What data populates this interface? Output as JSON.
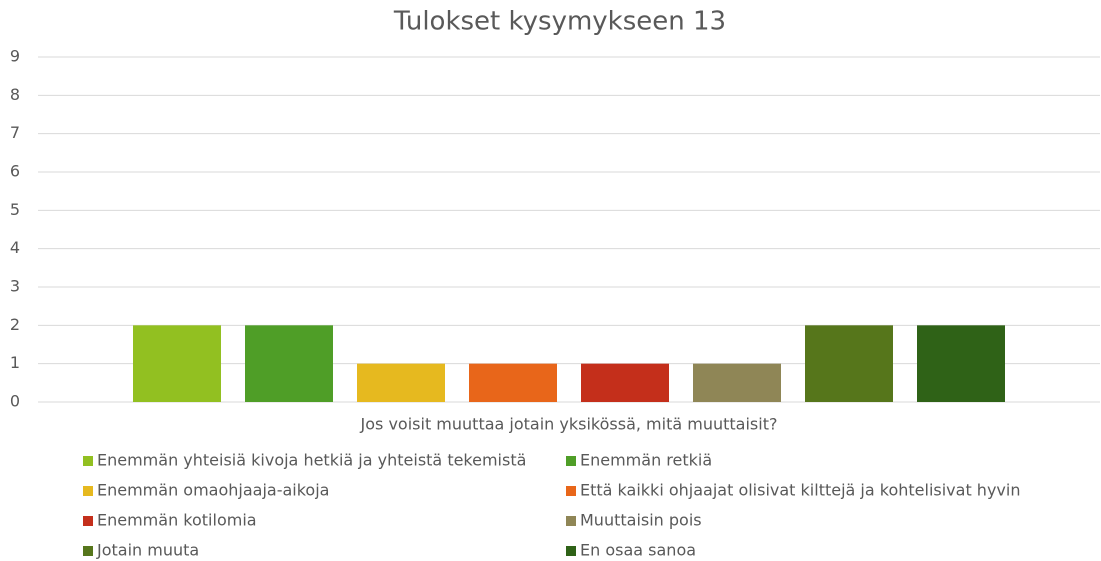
{
  "chart_data": {
    "type": "bar",
    "title": "Tulokset kysymykseen 13",
    "categories": [
      "Jos voisit muuttaa jotain yksikössä, mitä muuttaisit?"
    ],
    "series": [
      {
        "name": "Enemmän yhteisiä kivoja hetkiä ja yhteistä tekemistä",
        "color": "#92c021",
        "values": [
          2
        ]
      },
      {
        "name": "Enemmän retkiä",
        "color": "#4f9e27",
        "values": [
          2
        ]
      },
      {
        "name": "Enemmän omaohjaaja-aikoja",
        "color": "#e6b91f",
        "values": [
          1
        ]
      },
      {
        "name": "Että kaikki ohjaajat olisivat kilttejä ja kohtelisivat hyvin",
        "color": "#e8661a",
        "values": [
          1
        ]
      },
      {
        "name": "Enemmän kotilomia",
        "color": "#c42f1b",
        "values": [
          1
        ]
      },
      {
        "name": "Muuttaisin pois",
        "color": "#8f8656",
        "values": [
          1
        ]
      },
      {
        "name": "Jotain muuta",
        "color": "#56761b",
        "values": [
          2
        ]
      },
      {
        "name": "En osaa sanoa",
        "color": "#2f6217",
        "values": [
          2
        ]
      }
    ],
    "ylim": [
      0,
      9
    ],
    "yticks": [
      0,
      1,
      2,
      3,
      4,
      5,
      6,
      7,
      8,
      9
    ],
    "grid": true
  }
}
